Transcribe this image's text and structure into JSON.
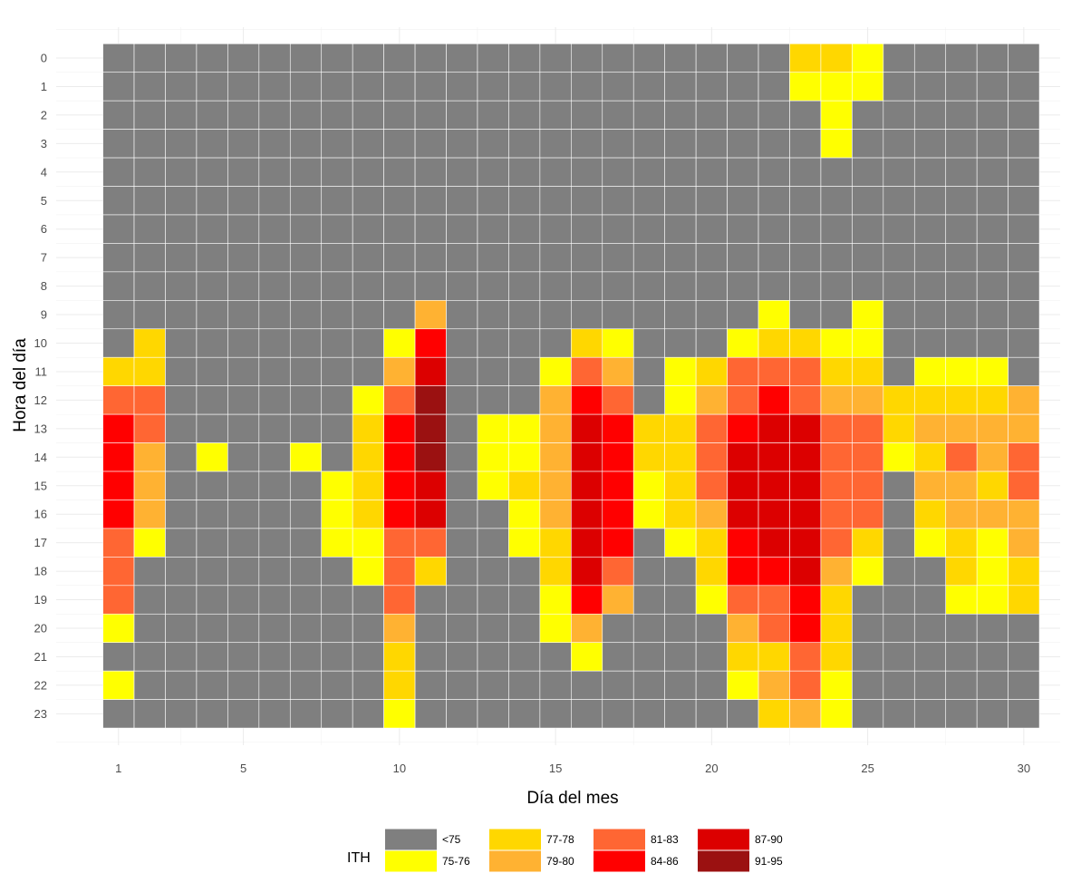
{
  "chart_data": {
    "type": "heatmap",
    "title": "",
    "xlabel": "Día del mes",
    "ylabel": "Hora del día",
    "x": [
      1,
      2,
      3,
      4,
      5,
      6,
      7,
      8,
      9,
      10,
      11,
      12,
      13,
      14,
      15,
      16,
      17,
      18,
      19,
      20,
      21,
      22,
      23,
      24,
      25,
      26,
      27,
      28,
      29,
      30
    ],
    "y": [
      0,
      1,
      2,
      3,
      4,
      5,
      6,
      7,
      8,
      9,
      10,
      11,
      12,
      13,
      14,
      15,
      16,
      17,
      18,
      19,
      20,
      21,
      22,
      23
    ],
    "xticks": [
      1,
      5,
      10,
      15,
      20,
      25,
      30
    ],
    "yticks": [
      0,
      1,
      2,
      3,
      4,
      5,
      6,
      7,
      8,
      9,
      10,
      11,
      12,
      13,
      14,
      15,
      16,
      17,
      18,
      19,
      20,
      21,
      22,
      23
    ],
    "y_reversed": true,
    "grid": true,
    "legend": {
      "title": "ITH",
      "position": "bottom",
      "categories": [
        "<75",
        "75-76",
        "77-78",
        "79-80",
        "81-83",
        "84-86",
        "87-90",
        "91-95"
      ],
      "colors": {
        "<75": "#7f7f7f",
        "75-76": "#ffff00",
        "77-78": "#ffd700",
        "79-80": "#ffb232",
        "81-83": "#ff6633",
        "84-86": "#ff0000",
        "87-90": "#dc0000",
        "91-95": "#9b1111"
      }
    },
    "values": [
      [
        "<75",
        "<75",
        "<75",
        "<75",
        "<75",
        "<75",
        "<75",
        "<75",
        "<75",
        "<75",
        "<75",
        "<75",
        "<75",
        "<75",
        "<75",
        "<75",
        "<75",
        "<75",
        "<75",
        "<75",
        "<75",
        "<75",
        "77-78",
        "77-78",
        "75-76",
        "<75",
        "<75",
        "<75",
        "<75",
        "<75"
      ],
      [
        "<75",
        "<75",
        "<75",
        "<75",
        "<75",
        "<75",
        "<75",
        "<75",
        "<75",
        "<75",
        "<75",
        "<75",
        "<75",
        "<75",
        "<75",
        "<75",
        "<75",
        "<75",
        "<75",
        "<75",
        "<75",
        "<75",
        "75-76",
        "75-76",
        "75-76",
        "<75",
        "<75",
        "<75",
        "<75",
        "<75"
      ],
      [
        "<75",
        "<75",
        "<75",
        "<75",
        "<75",
        "<75",
        "<75",
        "<75",
        "<75",
        "<75",
        "<75",
        "<75",
        "<75",
        "<75",
        "<75",
        "<75",
        "<75",
        "<75",
        "<75",
        "<75",
        "<75",
        "<75",
        "<75",
        "75-76",
        "<75",
        "<75",
        "<75",
        "<75",
        "<75",
        "<75"
      ],
      [
        "<75",
        "<75",
        "<75",
        "<75",
        "<75",
        "<75",
        "<75",
        "<75",
        "<75",
        "<75",
        "<75",
        "<75",
        "<75",
        "<75",
        "<75",
        "<75",
        "<75",
        "<75",
        "<75",
        "<75",
        "<75",
        "<75",
        "<75",
        "75-76",
        "<75",
        "<75",
        "<75",
        "<75",
        "<75",
        "<75"
      ],
      [
        "<75",
        "<75",
        "<75",
        "<75",
        "<75",
        "<75",
        "<75",
        "<75",
        "<75",
        "<75",
        "<75",
        "<75",
        "<75",
        "<75",
        "<75",
        "<75",
        "<75",
        "<75",
        "<75",
        "<75",
        "<75",
        "<75",
        "<75",
        "<75",
        "<75",
        "<75",
        "<75",
        "<75",
        "<75",
        "<75"
      ],
      [
        "<75",
        "<75",
        "<75",
        "<75",
        "<75",
        "<75",
        "<75",
        "<75",
        "<75",
        "<75",
        "<75",
        "<75",
        "<75",
        "<75",
        "<75",
        "<75",
        "<75",
        "<75",
        "<75",
        "<75",
        "<75",
        "<75",
        "<75",
        "<75",
        "<75",
        "<75",
        "<75",
        "<75",
        "<75",
        "<75"
      ],
      [
        "<75",
        "<75",
        "<75",
        "<75",
        "<75",
        "<75",
        "<75",
        "<75",
        "<75",
        "<75",
        "<75",
        "<75",
        "<75",
        "<75",
        "<75",
        "<75",
        "<75",
        "<75",
        "<75",
        "<75",
        "<75",
        "<75",
        "<75",
        "<75",
        "<75",
        "<75",
        "<75",
        "<75",
        "<75",
        "<75"
      ],
      [
        "<75",
        "<75",
        "<75",
        "<75",
        "<75",
        "<75",
        "<75",
        "<75",
        "<75",
        "<75",
        "<75",
        "<75",
        "<75",
        "<75",
        "<75",
        "<75",
        "<75",
        "<75",
        "<75",
        "<75",
        "<75",
        "<75",
        "<75",
        "<75",
        "<75",
        "<75",
        "<75",
        "<75",
        "<75",
        "<75"
      ],
      [
        "<75",
        "<75",
        "<75",
        "<75",
        "<75",
        "<75",
        "<75",
        "<75",
        "<75",
        "<75",
        "<75",
        "<75",
        "<75",
        "<75",
        "<75",
        "<75",
        "<75",
        "<75",
        "<75",
        "<75",
        "<75",
        "<75",
        "<75",
        "<75",
        "<75",
        "<75",
        "<75",
        "<75",
        "<75",
        "<75"
      ],
      [
        "<75",
        "<75",
        "<75",
        "<75",
        "<75",
        "<75",
        "<75",
        "<75",
        "<75",
        "<75",
        "79-80",
        "<75",
        "<75",
        "<75",
        "<75",
        "<75",
        "<75",
        "<75",
        "<75",
        "<75",
        "<75",
        "75-76",
        "<75",
        "<75",
        "75-76",
        "<75",
        "<75",
        "<75",
        "<75",
        "<75"
      ],
      [
        "<75",
        "77-78",
        "<75",
        "<75",
        "<75",
        "<75",
        "<75",
        "<75",
        "<75",
        "75-76",
        "84-86",
        "<75",
        "<75",
        "<75",
        "<75",
        "77-78",
        "75-76",
        "<75",
        "<75",
        "<75",
        "75-76",
        "77-78",
        "77-78",
        "75-76",
        "75-76",
        "<75",
        "<75",
        "<75",
        "<75",
        "<75"
      ],
      [
        "77-78",
        "77-78",
        "<75",
        "<75",
        "<75",
        "<75",
        "<75",
        "<75",
        "<75",
        "79-80",
        "87-90",
        "<75",
        "<75",
        "<75",
        "75-76",
        "81-83",
        "79-80",
        "<75",
        "75-76",
        "77-78",
        "81-83",
        "81-83",
        "81-83",
        "77-78",
        "77-78",
        "<75",
        "75-76",
        "75-76",
        "75-76",
        "<75"
      ],
      [
        "81-83",
        "81-83",
        "<75",
        "<75",
        "<75",
        "<75",
        "<75",
        "<75",
        "75-76",
        "81-83",
        "91-95",
        "<75",
        "<75",
        "<75",
        "79-80",
        "84-86",
        "81-83",
        "<75",
        "75-76",
        "79-80",
        "81-83",
        "84-86",
        "81-83",
        "79-80",
        "79-80",
        "77-78",
        "77-78",
        "77-78",
        "77-78",
        "79-80"
      ],
      [
        "84-86",
        "81-83",
        "<75",
        "<75",
        "<75",
        "<75",
        "<75",
        "<75",
        "77-78",
        "84-86",
        "91-95",
        "<75",
        "75-76",
        "75-76",
        "79-80",
        "87-90",
        "84-86",
        "77-78",
        "77-78",
        "81-83",
        "84-86",
        "87-90",
        "87-90",
        "81-83",
        "81-83",
        "77-78",
        "79-80",
        "79-80",
        "79-80",
        "79-80"
      ],
      [
        "84-86",
        "79-80",
        "<75",
        "75-76",
        "<75",
        "<75",
        "75-76",
        "<75",
        "77-78",
        "84-86",
        "91-95",
        "<75",
        "75-76",
        "75-76",
        "79-80",
        "87-90",
        "84-86",
        "77-78",
        "77-78",
        "81-83",
        "87-90",
        "87-90",
        "87-90",
        "81-83",
        "81-83",
        "75-76",
        "77-78",
        "81-83",
        "79-80",
        "81-83"
      ],
      [
        "84-86",
        "79-80",
        "<75",
        "<75",
        "<75",
        "<75",
        "<75",
        "75-76",
        "77-78",
        "84-86",
        "87-90",
        "<75",
        "75-76",
        "77-78",
        "79-80",
        "87-90",
        "84-86",
        "75-76",
        "77-78",
        "81-83",
        "87-90",
        "87-90",
        "87-90",
        "81-83",
        "81-83",
        "<75",
        "79-80",
        "79-80",
        "77-78",
        "81-83"
      ],
      [
        "84-86",
        "79-80",
        "<75",
        "<75",
        "<75",
        "<75",
        "<75",
        "75-76",
        "77-78",
        "84-86",
        "87-90",
        "<75",
        "<75",
        "75-76",
        "79-80",
        "87-90",
        "84-86",
        "75-76",
        "77-78",
        "79-80",
        "87-90",
        "87-90",
        "87-90",
        "81-83",
        "81-83",
        "<75",
        "77-78",
        "79-80",
        "79-80",
        "79-80"
      ],
      [
        "81-83",
        "75-76",
        "<75",
        "<75",
        "<75",
        "<75",
        "<75",
        "75-76",
        "75-76",
        "81-83",
        "81-83",
        "<75",
        "<75",
        "75-76",
        "77-78",
        "87-90",
        "84-86",
        "<75",
        "75-76",
        "77-78",
        "84-86",
        "87-90",
        "87-90",
        "81-83",
        "77-78",
        "<75",
        "75-76",
        "77-78",
        "75-76",
        "79-80"
      ],
      [
        "81-83",
        "<75",
        "<75",
        "<75",
        "<75",
        "<75",
        "<75",
        "<75",
        "75-76",
        "81-83",
        "77-78",
        "<75",
        "<75",
        "<75",
        "77-78",
        "87-90",
        "81-83",
        "<75",
        "<75",
        "77-78",
        "84-86",
        "84-86",
        "87-90",
        "79-80",
        "75-76",
        "<75",
        "<75",
        "77-78",
        "75-76",
        "77-78"
      ],
      [
        "81-83",
        "<75",
        "<75",
        "<75",
        "<75",
        "<75",
        "<75",
        "<75",
        "<75",
        "81-83",
        "<75",
        "<75",
        "<75",
        "<75",
        "75-76",
        "84-86",
        "79-80",
        "<75",
        "<75",
        "75-76",
        "81-83",
        "81-83",
        "84-86",
        "77-78",
        "<75",
        "<75",
        "<75",
        "75-76",
        "75-76",
        "77-78"
      ],
      [
        "75-76",
        "<75",
        "<75",
        "<75",
        "<75",
        "<75",
        "<75",
        "<75",
        "<75",
        "79-80",
        "<75",
        "<75",
        "<75",
        "<75",
        "75-76",
        "79-80",
        "<75",
        "<75",
        "<75",
        "<75",
        "79-80",
        "81-83",
        "84-86",
        "77-78",
        "<75",
        "<75",
        "<75",
        "<75",
        "<75",
        "<75"
      ],
      [
        "<75",
        "<75",
        "<75",
        "<75",
        "<75",
        "<75",
        "<75",
        "<75",
        "<75",
        "77-78",
        "<75",
        "<75",
        "<75",
        "<75",
        "<75",
        "75-76",
        "<75",
        "<75",
        "<75",
        "<75",
        "77-78",
        "77-78",
        "81-83",
        "77-78",
        "<75",
        "<75",
        "<75",
        "<75",
        "<75",
        "<75"
      ],
      [
        "75-76",
        "<75",
        "<75",
        "<75",
        "<75",
        "<75",
        "<75",
        "<75",
        "<75",
        "77-78",
        "<75",
        "<75",
        "<75",
        "<75",
        "<75",
        "<75",
        "<75",
        "<75",
        "<75",
        "<75",
        "75-76",
        "79-80",
        "81-83",
        "75-76",
        "<75",
        "<75",
        "<75",
        "<75",
        "<75",
        "<75"
      ],
      [
        "<75",
        "<75",
        "<75",
        "<75",
        "<75",
        "<75",
        "<75",
        "<75",
        "<75",
        "75-76",
        "<75",
        "<75",
        "<75",
        "<75",
        "<75",
        "<75",
        "<75",
        "<75",
        "<75",
        "<75",
        "<75",
        "77-78",
        "79-80",
        "75-76",
        "<75",
        "<75",
        "<75",
        "<75",
        "<75",
        "<75"
      ]
    ]
  }
}
